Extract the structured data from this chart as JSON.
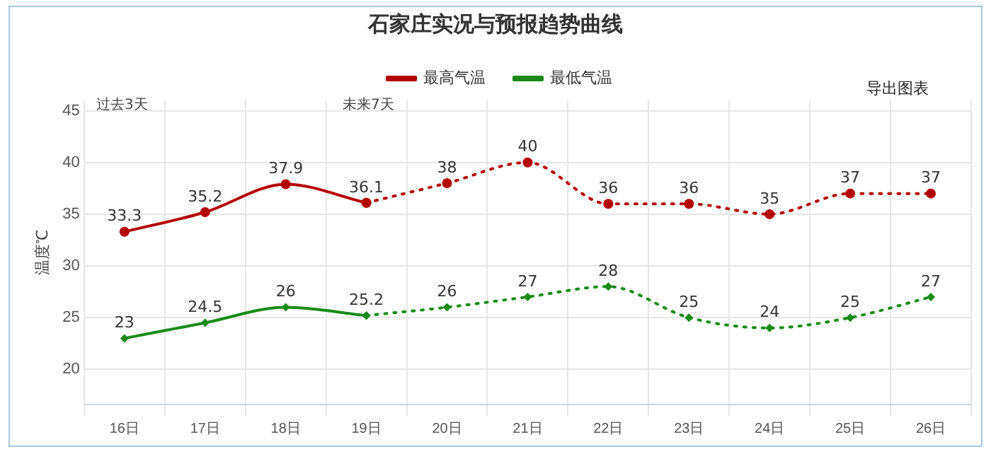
{
  "chart_data": {
    "type": "line",
    "title": "石家庄实况与预报趋势曲线",
    "ylabel": "温度℃",
    "categories": [
      "16日",
      "17日",
      "18日",
      "19日",
      "20日",
      "21日",
      "22日",
      "23日",
      "24日",
      "25日",
      "26日"
    ],
    "series": [
      {
        "name": "最高气温",
        "color": "#b30000",
        "marker": "circle",
        "line_style": "solid",
        "values": [
          33.3,
          35.2,
          37.9,
          36.1,
          null,
          null,
          null,
          null,
          null,
          null,
          null
        ],
        "value_labels": [
          "33.3",
          "35.2",
          "37.9",
          "36.1",
          null,
          null,
          null,
          null,
          null,
          null,
          null
        ]
      },
      {
        "color": "#b30000",
        "marker": "circle",
        "line_style": "dotted",
        "values": [
          null,
          null,
          null,
          36.1,
          38,
          40,
          36,
          36,
          35,
          37,
          37
        ],
        "value_labels": [
          null,
          null,
          null,
          null,
          "38",
          "40",
          "36",
          "36",
          "35",
          "37",
          "37"
        ]
      },
      {
        "name": "最低气温",
        "color": "#1a8a1a",
        "marker": "diamond",
        "line_style": "solid",
        "values": [
          23,
          24.5,
          26,
          25.2,
          null,
          null,
          null,
          null,
          null,
          null,
          null
        ],
        "value_labels": [
          "23",
          "24.5",
          "26",
          "25.2",
          null,
          null,
          null,
          null,
          null,
          null,
          null
        ]
      },
      {
        "color": "#1a8a1a",
        "marker": "diamond",
        "line_style": "dotted",
        "values": [
          null,
          null,
          null,
          25.2,
          26,
          27,
          28,
          25,
          24,
          25,
          27
        ],
        "value_labels": [
          null,
          null,
          null,
          null,
          "26",
          "27",
          "28",
          "25",
          "24",
          "25",
          "27"
        ]
      }
    ],
    "ylim": [
      16.6,
      46
    ],
    "yticks": [
      20,
      25,
      30,
      35,
      40,
      45
    ],
    "grid": true,
    "legend": "top",
    "annotations": [
      "过去3天",
      "未来7天",
      "导出图表"
    ]
  }
}
